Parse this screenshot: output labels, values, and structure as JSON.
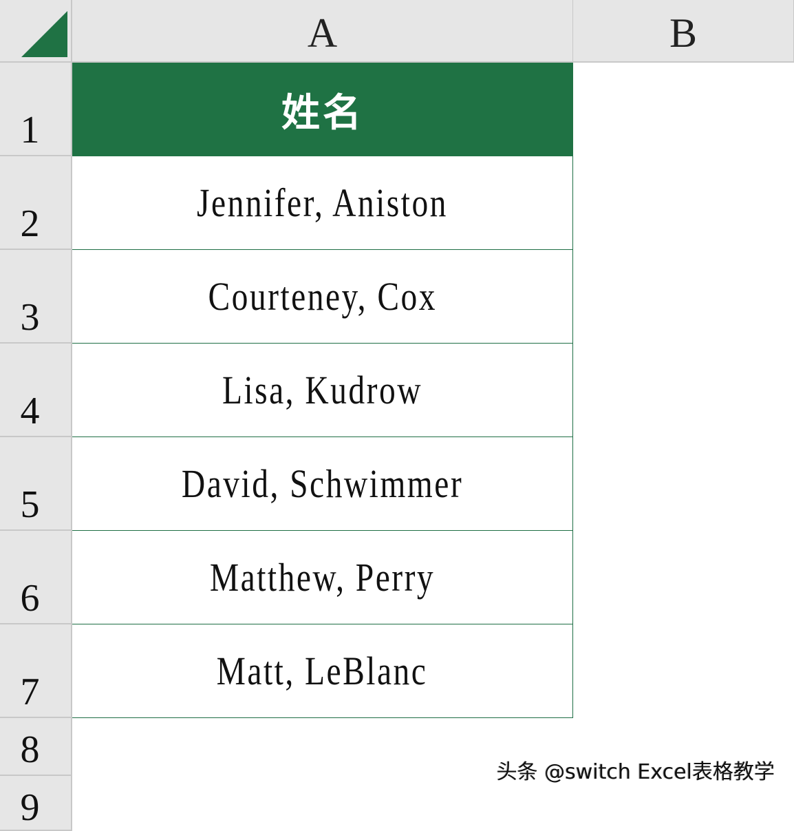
{
  "columns": [
    "A",
    "B"
  ],
  "rows": [
    "1",
    "2",
    "3",
    "4",
    "5",
    "6",
    "7",
    "8",
    "9"
  ],
  "cells": {
    "header": "姓名",
    "values": [
      "Jennifer, Aniston",
      "Courteney, Cox",
      "Lisa, Kudrow",
      "David, Schwimmer",
      "Matthew, Perry",
      "Matt, LeBlanc"
    ]
  },
  "colors": {
    "header_fill": "#1f7244",
    "select_all_triangle": "#1f7244",
    "header_bg": "#e6e6e6"
  },
  "watermark": "头条 @switch Excel表格教学"
}
